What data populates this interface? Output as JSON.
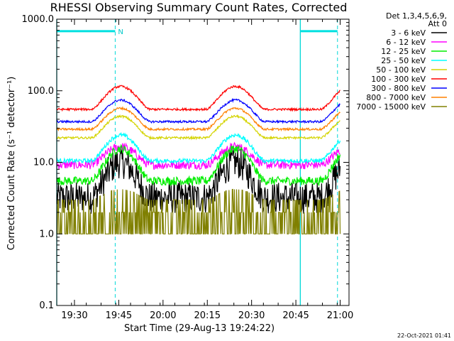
{
  "chart_data": {
    "type": "line",
    "title": "RHESSI Observing Summary Count Rates, Corrected",
    "xlabel": "Start Time (29-Aug-13 19:24:22)",
    "ylabel": "Corrected Count Rate (s⁻¹ detector⁻¹)",
    "yscale": "log",
    "ylim": [
      0.1,
      1000.0
    ],
    "xlim_minutes": [
      19.4,
      21.05
    ],
    "x_ticks": [
      {
        "t": 19.5,
        "label": "19:30"
      },
      {
        "t": 19.75,
        "label": "19:45"
      },
      {
        "t": 20.0,
        "label": "20:00"
      },
      {
        "t": 20.25,
        "label": "20:15"
      },
      {
        "t": 20.5,
        "label": "20:30"
      },
      {
        "t": 20.75,
        "label": "20:45"
      },
      {
        "t": 21.0,
        "label": "21:00"
      }
    ],
    "y_ticks": [
      {
        "v": 0.1,
        "label": "0.1"
      },
      {
        "v": 1.0,
        "label": "1.0"
      },
      {
        "v": 10.0,
        "label": "10.0"
      },
      {
        "v": 100.0,
        "label": "100.0"
      },
      {
        "v": 1000.0,
        "label": "1000.0"
      }
    ],
    "legend_header": [
      "Det 1,3,4,5,6,9,",
      "Att 0"
    ],
    "series": [
      {
        "name": "3 - 6 keV",
        "color": "#000000",
        "min": 3.2,
        "max": 10.0,
        "noise": 0.45
      },
      {
        "name": "6 - 12 keV",
        "color": "#ff00ff",
        "min": 9.2,
        "max": 16.5,
        "noise": 0.12
      },
      {
        "name": "12 - 25 keV",
        "color": "#00ee00",
        "min": 5.5,
        "max": 15.5,
        "noise": 0.12
      },
      {
        "name": "25 - 50 keV",
        "color": "#00ffff",
        "min": 10.5,
        "max": 24.0,
        "noise": 0.06
      },
      {
        "name": "50 - 100 keV",
        "color": "#d4d400",
        "min": 22.0,
        "max": 44.0,
        "noise": 0.03
      },
      {
        "name": "100 - 300 keV",
        "color": "#ff0000",
        "min": 55.0,
        "max": 115.0,
        "noise": 0.03
      },
      {
        "name": "300 - 800 keV",
        "color": "#0000ff",
        "min": 37.0,
        "max": 74.0,
        "noise": 0.03
      },
      {
        "name": "800 - 7000 keV",
        "color": "#ff8000",
        "min": 29.0,
        "max": 57.0,
        "noise": 0.03
      },
      {
        "name": "7000 - 15000 keV",
        "color": "#808000",
        "min": 1.0,
        "max": 3.5,
        "noise": 0.6
      }
    ],
    "peaks_hours": [
      19.76,
      20.41
    ],
    "period_hours": 0.648,
    "start_hour": 19.4,
    "end_hour": 21.0,
    "night_markers_hours": [
      19.4,
      20.775
    ],
    "saa_markers_hours": [
      19.73,
      20.985
    ],
    "flag_bars": [
      {
        "from": 19.4,
        "to": 19.73,
        "label": "N",
        "value": 680
      },
      {
        "from": 20.775,
        "to": 20.985,
        "label": "",
        "value": 680
      }
    ]
  },
  "footer": {
    "timestamp": "22-Oct-2021 01:41"
  }
}
